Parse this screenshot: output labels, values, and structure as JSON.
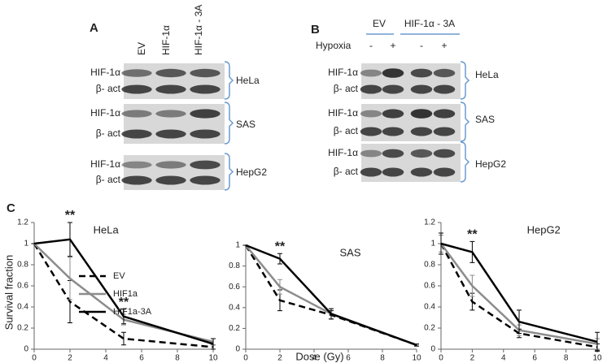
{
  "panel_A": {
    "letter": "A",
    "columns": [
      "EV",
      "HIF-1α",
      "HIF-1α - 3A"
    ],
    "groups": [
      {
        "name": "HeLa",
        "rows": [
          "HIF-1α",
          "β- act"
        ]
      },
      {
        "name": "SAS",
        "rows": [
          "HIF-1α",
          "β- act"
        ]
      },
      {
        "name": "HepG2",
        "rows": [
          "HIF-1α",
          "β- act"
        ]
      }
    ]
  },
  "panel_B": {
    "letter": "B",
    "header": [
      "EV",
      "HIF-1α - 3A"
    ],
    "hypoxia_label": "Hypoxia",
    "hypoxia_marks": [
      "-",
      "+",
      "-",
      "+"
    ],
    "groups": [
      {
        "name": "HeLa",
        "rows": [
          "HIF-1α",
          "β- act"
        ]
      },
      {
        "name": "SAS",
        "rows": [
          "HIF-1α",
          "β- act"
        ]
      },
      {
        "name": "HepG2",
        "rows": [
          "HIF-1α",
          "β- act"
        ]
      }
    ]
  },
  "panel_C": {
    "letter": "C",
    "x_label": "Dose (Gy)",
    "y_label": "Survival fraction"
  },
  "chart_data": [
    {
      "type": "line",
      "title": "HeLa",
      "x": [
        0,
        2,
        5,
        10
      ],
      "xlim": [
        0,
        10
      ],
      "xticks": [
        0,
        2,
        4,
        6,
        8,
        10
      ],
      "ylim": [
        0,
        1.2
      ],
      "yticks": [
        0,
        0.2,
        0.4,
        0.6,
        0.8,
        1,
        1.2
      ],
      "legend": true,
      "series": [
        {
          "name": "EV",
          "color": "#000000",
          "dash": true,
          "values": [
            1,
            0.45,
            0.1,
            0.02
          ],
          "errors": [
            0,
            0.2,
            0.06,
            0.02
          ]
        },
        {
          "name": "HIF1a",
          "color": "#8c8c8c",
          "values": [
            1,
            0.67,
            0.28,
            0.07
          ],
          "errors": [
            0,
            0.2,
            0.05,
            0.03
          ]
        },
        {
          "name": "HIF1a-3A",
          "color": "#000000",
          "values": [
            1,
            1.04,
            0.31,
            0.05
          ],
          "errors": [
            0,
            0.16,
            0.07,
            0.05
          ]
        }
      ],
      "annotations": [
        {
          "text": "**",
          "x": 2
        },
        {
          "text": "**",
          "x": 5
        }
      ]
    },
    {
      "type": "line",
      "title": "SAS",
      "x": [
        0,
        2,
        5,
        10
      ],
      "xlim": [
        0,
        10
      ],
      "xticks": [
        0,
        2,
        4,
        6,
        8,
        10
      ],
      "ylim": [
        0,
        1
      ],
      "yticks": [
        0,
        0.2,
        0.4,
        0.6,
        0.8,
        1
      ],
      "series": [
        {
          "color": "#000000",
          "dash": true,
          "values": [
            1,
            0.47,
            0.33,
            0.04
          ],
          "errors": [
            0,
            0.1,
            0.04,
            0.01
          ]
        },
        {
          "color": "#8c8c8c",
          "values": [
            1,
            0.6,
            0.34,
            0.04
          ],
          "errors": [
            0,
            0.07,
            0.05,
            0.01
          ]
        },
        {
          "color": "#000000",
          "values": [
            1,
            0.87,
            0.34,
            0.04
          ],
          "errors": [
            0,
            0.05,
            0.05,
            0.01
          ]
        }
      ],
      "annotations": [
        {
          "text": "**",
          "x": 2
        }
      ]
    },
    {
      "type": "line",
      "title": "HepG2",
      "x": [
        0,
        2,
        5,
        10
      ],
      "xlim": [
        0,
        10
      ],
      "xticks": [
        0,
        2,
        4,
        6,
        8,
        10
      ],
      "ylim": [
        0,
        1.2
      ],
      "yticks": [
        0,
        0.2,
        0.4,
        0.6,
        0.8,
        1,
        1.2
      ],
      "series": [
        {
          "color": "#000000",
          "dash": true,
          "values": [
            1,
            0.45,
            0.15,
            0.02
          ],
          "errors": [
            0.1,
            0.08,
            0.04,
            0.03
          ]
        },
        {
          "color": "#8c8c8c",
          "values": [
            1,
            0.6,
            0.18,
            0.05
          ],
          "errors": [
            0.08,
            0.1,
            0.05,
            0.05
          ]
        },
        {
          "color": "#000000",
          "values": [
            1,
            0.92,
            0.26,
            0.07
          ],
          "errors": [
            0.1,
            0.1,
            0.11,
            0.09
          ]
        }
      ],
      "annotations": [
        {
          "text": "**",
          "x": 2
        }
      ]
    }
  ]
}
